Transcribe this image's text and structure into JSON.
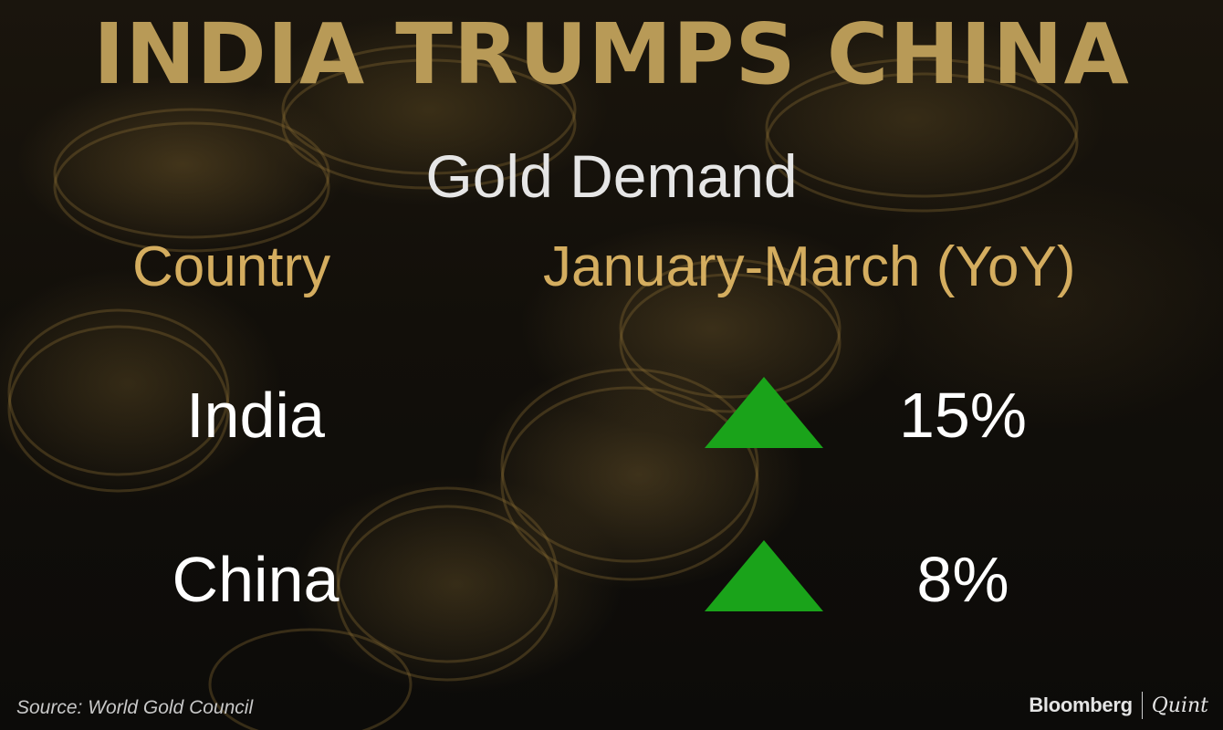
{
  "title": "INDIA TRUMPS CHINA",
  "subtitle": "Gold Demand",
  "columns": {
    "country": "Country",
    "period": "January-March (YoY)"
  },
  "rows": [
    {
      "country": "India",
      "value": "15%",
      "direction": "up",
      "arrow_color": "#1aa31a"
    },
    {
      "country": "China",
      "value": "8%",
      "direction": "up",
      "arrow_color": "#1aa31a"
    }
  ],
  "source": "Source: World Gold Council",
  "brand": {
    "primary": "Bloomberg",
    "secondary": "Quint"
  },
  "colors": {
    "title": "#b89a57",
    "column_headers": "#d4ad5f",
    "text": "#ffffff",
    "background": "#0b0a08"
  }
}
